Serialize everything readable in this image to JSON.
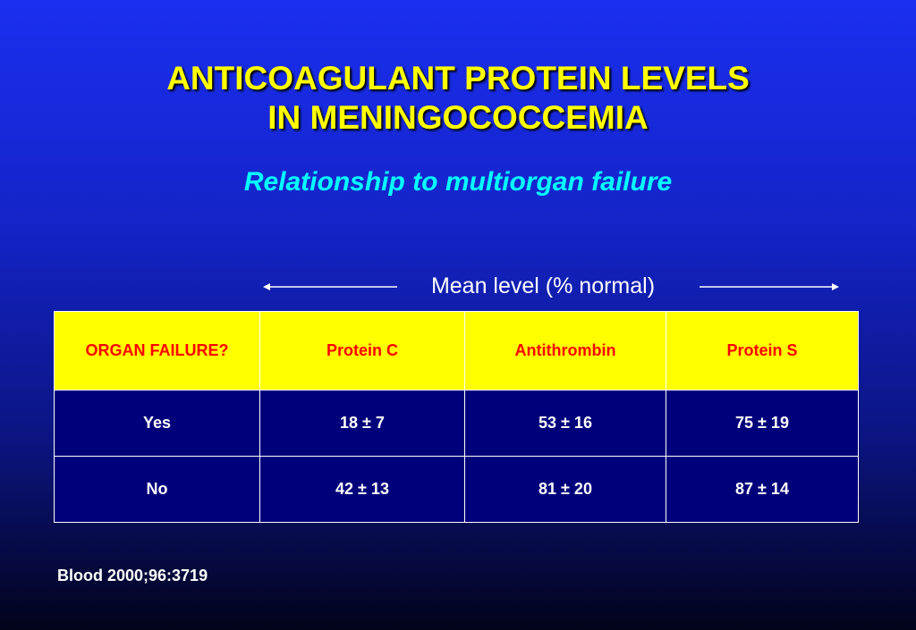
{
  "title": {
    "line1": "ANTICOAGULANT PROTEIN LEVELS",
    "line2": "IN MENINGOCOCCEMIA"
  },
  "subtitle": "Relationship to multiorgan failure",
  "mean_label": "Mean level (% normal)",
  "table": {
    "headers": [
      "ORGAN FAILURE?",
      "Protein C",
      "Antithrombin",
      "Protein S"
    ],
    "rows": [
      [
        "Yes",
        "18 ± 7",
        "53 ± 16",
        "75 ± 19"
      ],
      [
        "No",
        "42 ± 13",
        "81 ± 20",
        "87 ± 14"
      ]
    ]
  },
  "citation": "Blood 2000;96:3719",
  "colors": {
    "title": "#ffff00",
    "subtitle": "#00ffff",
    "header_bg": "#ffff00",
    "header_text": "#ff0000",
    "cell_bg": "#00007a",
    "background_top": "#1a2ff0",
    "background_bottom": "#02031a"
  }
}
